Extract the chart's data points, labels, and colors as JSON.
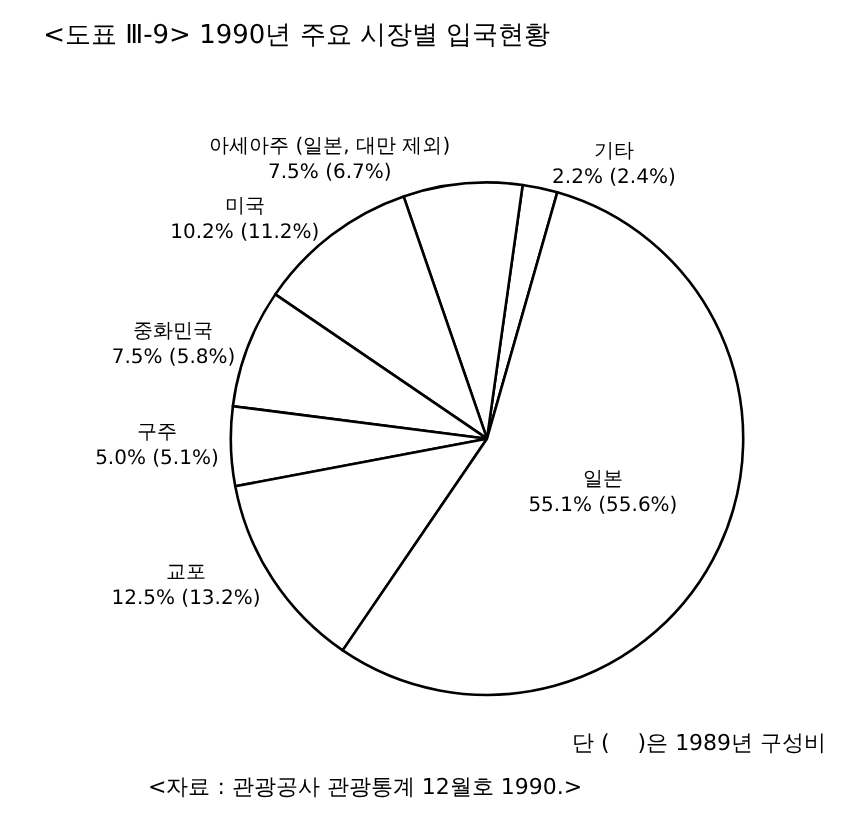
{
  "chart_data": {
    "type": "pie",
    "title": "<도표 Ⅲ-9> 1990년 주요 시장별 입국현황",
    "categories": [
      "기타",
      "아세아주 (일본, 대만 제외)",
      "미국",
      "중화민국",
      "구주",
      "교포",
      "일본"
    ],
    "values": [
      2.2,
      7.5,
      10.2,
      7.5,
      5.0,
      12.5,
      55.1
    ],
    "value_labels": [
      "2.2% (2.4%)",
      "7.5% (6.7%)",
      "10.2% (11.2%)",
      "7.5% (5.8%)",
      "5.0% (5.1%)",
      "12.5% (13.2%)",
      "55.1% (55.6%)"
    ],
    "colors": [
      "#ffffff",
      "#ffffff",
      "#ffffff",
      "#ffffff",
      "#ffffff",
      "#ffffff",
      "#ffffff"
    ],
    "legend": false,
    "annotations": [
      "단 (    )은 1989년 구성비",
      "<자료 : 관광공사 관광통계 12월호 1990.>"
    ]
  }
}
